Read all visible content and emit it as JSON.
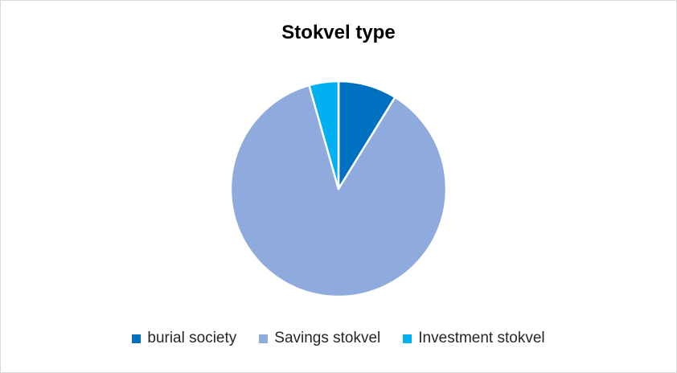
{
  "chart_data": {
    "type": "pie",
    "title": "Stokvel type",
    "categories": [
      "burial society",
      "Savings stokvel",
      "Investment stokvel"
    ],
    "values": [
      8.8,
      86.8,
      4.4
    ],
    "colors": [
      "#0070c0",
      "#8faadc",
      "#00b0f0"
    ],
    "legend_position": "bottom",
    "start_angle_deg": 0,
    "direction": "clockwise",
    "slice_separator_color": "#ffffff"
  }
}
